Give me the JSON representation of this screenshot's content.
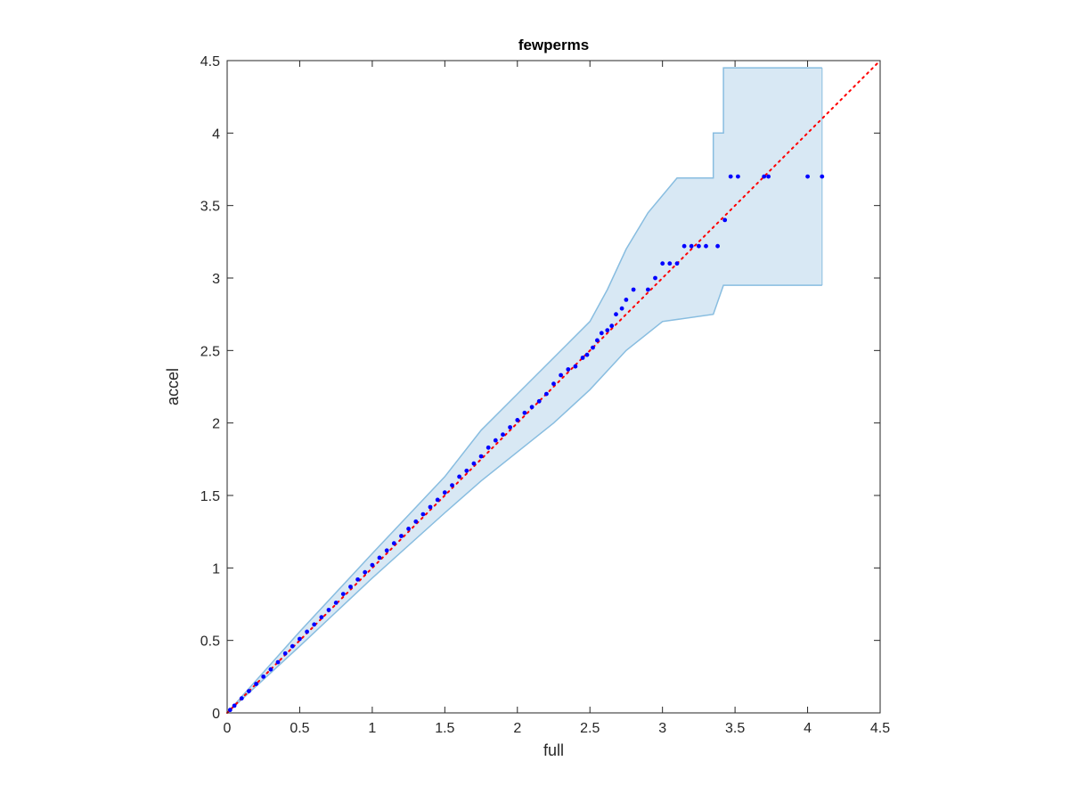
{
  "chart_data": {
    "type": "scatter",
    "title": "fewperms",
    "xlabel": "full",
    "ylabel": "accel",
    "xlim": [
      0,
      4.5
    ],
    "ylim": [
      0,
      4.5
    ],
    "x_ticks": [
      0,
      0.5,
      1,
      1.5,
      2,
      2.5,
      3,
      3.5,
      4,
      4.5
    ],
    "y_ticks": [
      0,
      0.5,
      1,
      1.5,
      2,
      2.5,
      3,
      3.5,
      4,
      4.5
    ],
    "x_tick_labels": [
      "0",
      "0.5",
      "1",
      "1.5",
      "2",
      "2.5",
      "3",
      "3.5",
      "4",
      "4.5"
    ],
    "y_tick_labels": [
      "0",
      "0.5",
      "1",
      "1.5",
      "2",
      "2.5",
      "3",
      "3.5",
      "4",
      "4.5"
    ],
    "grid": false,
    "colors": {
      "points": "#0000ff",
      "reference_line": "#ff0000",
      "band_fill": "#d8e8f4",
      "band_edge": "#88bde0",
      "axes": "#262626"
    },
    "reference_line": [
      [
        0,
        0
      ],
      [
        4.5,
        4.5
      ]
    ],
    "confidence_band": {
      "upper": [
        [
          0,
          0
        ],
        [
          0.5,
          0.56
        ],
        [
          1.0,
          1.1
        ],
        [
          1.5,
          1.63
        ],
        [
          1.75,
          1.95
        ],
        [
          2.0,
          2.2
        ],
        [
          2.25,
          2.45
        ],
        [
          2.5,
          2.7
        ],
        [
          2.62,
          2.92
        ],
        [
          2.75,
          3.2
        ],
        [
          2.9,
          3.45
        ],
        [
          3.1,
          3.69
        ],
        [
          3.35,
          3.69
        ],
        [
          3.35,
          4.0
        ],
        [
          3.42,
          4.0
        ],
        [
          3.42,
          4.45
        ],
        [
          4.1,
          4.45
        ]
      ],
      "lower": [
        [
          0,
          0
        ],
        [
          0.5,
          0.46
        ],
        [
          1.0,
          0.93
        ],
        [
          1.5,
          1.38
        ],
        [
          1.75,
          1.6
        ],
        [
          2.0,
          1.8
        ],
        [
          2.25,
          2.0
        ],
        [
          2.5,
          2.23
        ],
        [
          2.75,
          2.5
        ],
        [
          3.0,
          2.7
        ],
        [
          3.35,
          2.75
        ],
        [
          3.42,
          2.95
        ],
        [
          4.1,
          2.95
        ]
      ]
    },
    "series": [
      {
        "x": [
          0.02,
          0.05,
          0.1,
          0.15,
          0.2,
          0.25,
          0.3,
          0.35,
          0.4,
          0.45,
          0.5,
          0.55,
          0.6,
          0.65,
          0.7,
          0.75,
          0.8,
          0.85,
          0.9,
          0.95,
          1.0,
          1.05,
          1.1,
          1.15,
          1.2,
          1.25,
          1.3,
          1.35,
          1.4,
          1.45,
          1.5,
          1.55,
          1.6,
          1.65,
          1.7,
          1.75,
          1.8,
          1.85,
          1.9,
          1.95,
          2.0,
          2.05,
          2.1,
          2.15,
          2.2,
          2.25,
          2.3,
          2.35,
          2.4,
          2.45,
          2.48,
          2.52,
          2.55,
          2.58,
          2.62,
          2.65,
          2.68,
          2.72,
          2.75,
          2.8,
          2.9,
          2.95,
          3.0,
          3.05,
          3.1,
          3.15,
          3.2,
          3.25,
          3.3,
          3.38,
          3.43,
          3.47,
          3.52,
          3.7,
          3.73,
          4.0,
          4.1
        ],
        "y": [
          0.02,
          0.05,
          0.1,
          0.15,
          0.2,
          0.25,
          0.3,
          0.35,
          0.41,
          0.46,
          0.51,
          0.56,
          0.61,
          0.66,
          0.71,
          0.76,
          0.82,
          0.87,
          0.92,
          0.97,
          1.02,
          1.07,
          1.12,
          1.17,
          1.22,
          1.27,
          1.32,
          1.37,
          1.42,
          1.47,
          1.52,
          1.57,
          1.63,
          1.67,
          1.72,
          1.77,
          1.83,
          1.88,
          1.92,
          1.97,
          2.02,
          2.07,
          2.11,
          2.15,
          2.2,
          2.27,
          2.33,
          2.37,
          2.39,
          2.45,
          2.47,
          2.52,
          2.57,
          2.62,
          2.64,
          2.67,
          2.75,
          2.79,
          2.85,
          2.92,
          2.92,
          3.0,
          3.1,
          3.1,
          3.1,
          3.22,
          3.22,
          3.22,
          3.22,
          3.22,
          3.4,
          3.7,
          3.7,
          3.7,
          3.7,
          3.7,
          3.7
        ]
      }
    ]
  }
}
